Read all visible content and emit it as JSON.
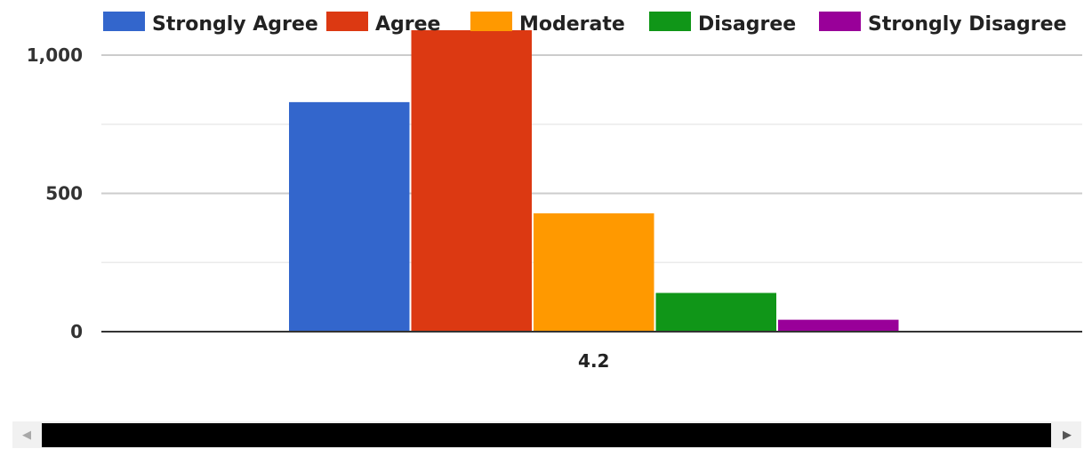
{
  "chart_data": {
    "type": "bar",
    "categories": [
      "4.2"
    ],
    "series": [
      {
        "name": "Strongly Agree",
        "values": [
          830
        ],
        "color": "#3366cc"
      },
      {
        "name": "Agree",
        "values": [
          1090
        ],
        "color": "#dc3912"
      },
      {
        "name": "Moderate",
        "values": [
          428
        ],
        "color": "#ff9900"
      },
      {
        "name": "Disagree",
        "values": [
          140
        ],
        "color": "#109618"
      },
      {
        "name": "Strongly Disagree",
        "values": [
          43
        ],
        "color": "#990099"
      }
    ],
    "yticks": [
      {
        "value": 0,
        "label": "0"
      },
      {
        "value": 500,
        "label": "500"
      },
      {
        "value": 1000,
        "label": "1,000"
      }
    ],
    "ylim": [
      0,
      1000
    ],
    "grid": true,
    "legend_position": "top"
  },
  "scrollbar": {
    "left_arrow": "◀",
    "right_arrow": "▶"
  }
}
